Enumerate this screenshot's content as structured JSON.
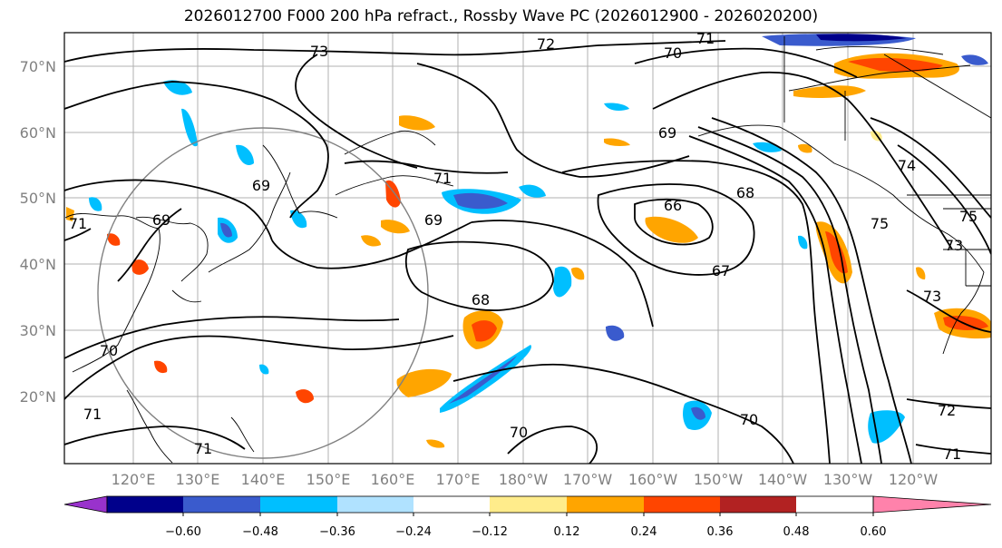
{
  "title": "2026012700 F000 200 hPa refract., Rossby Wave PC (2026012900 - 2026020200)",
  "lat_labels": [
    "70°N",
    "60°N",
    "50°N",
    "40°N",
    "30°N",
    "20°N"
  ],
  "lon_labels": [
    "120°E",
    "130°E",
    "140°E",
    "150°E",
    "160°E",
    "170°E",
    "180°W",
    "170°W",
    "160°W",
    "150°W",
    "140°W",
    "130°W",
    "120°W"
  ],
  "contour_labels": [
    "73",
    "72",
    "71",
    "70",
    "69",
    "69",
    "69",
    "69",
    "71",
    "66",
    "68",
    "67",
    "68",
    "70",
    "70",
    "70",
    "71",
    "71",
    "72",
    "71",
    "74",
    "75",
    "73",
    "73",
    "75",
    "71"
  ],
  "colorbar": {
    "colors": [
      "#9932cc",
      "#00008b",
      "#3a5bcd",
      "#00bfff",
      "#b0e2ff",
      "#ffffff",
      "#ffec8b",
      "#ffa500",
      "#ff4500",
      "#b22222",
      "#ff82ab"
    ],
    "tick_labels": [
      "−0.60",
      "−0.48",
      "−0.36",
      "−0.24",
      "−0.12",
      "0.12",
      "0.24",
      "0.36",
      "0.48",
      "0.60"
    ]
  }
}
